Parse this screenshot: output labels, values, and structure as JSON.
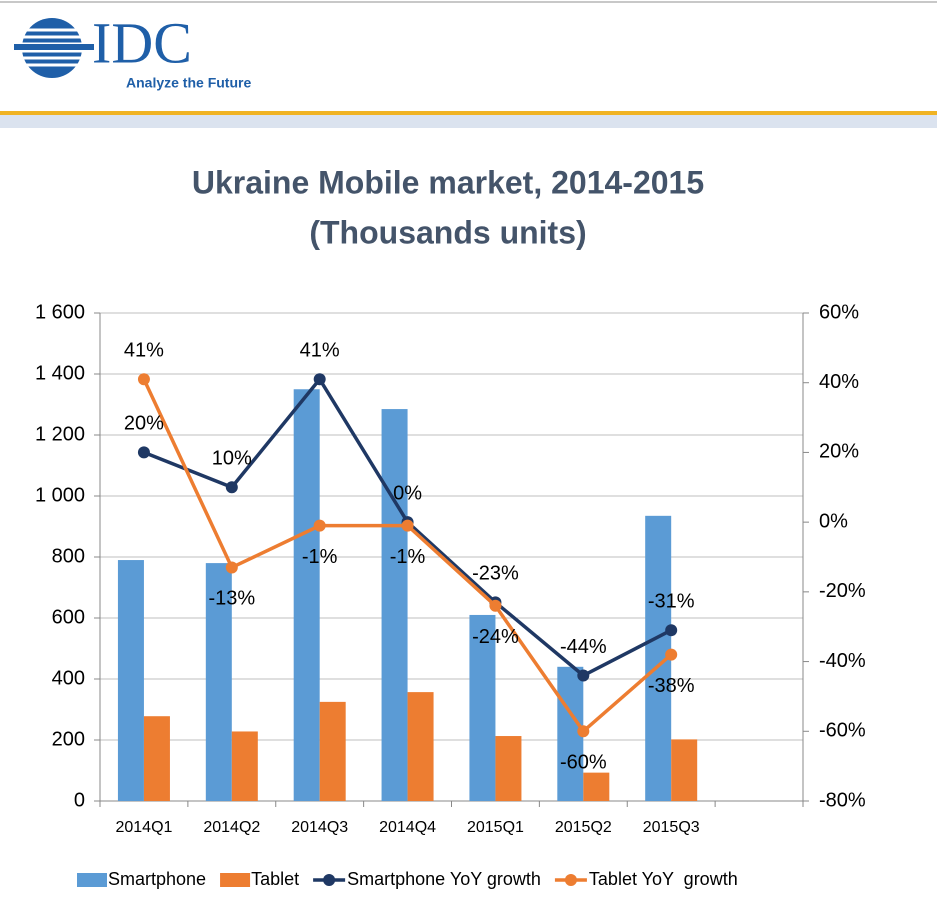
{
  "header": {
    "logo_text": "IDC",
    "tagline": "Analyze the Future"
  },
  "chart_data": {
    "type": "bar",
    "title": "Ukraine Mobile market, 2014-2015",
    "subtitle": "(Thousands units)",
    "categories": [
      "2014Q1",
      "2014Q2",
      "2014Q3",
      "2014Q4",
      "2015Q1",
      "2015Q2",
      "2015Q3",
      null
    ],
    "ylim": [
      0,
      1600
    ],
    "yticks": [
      0,
      200,
      400,
      600,
      800,
      {
        "value": 1000,
        "label": "1 000"
      },
      {
        "value": 1200,
        "label": "1 200"
      },
      {
        "value": 1400,
        "label": "1 400"
      },
      {
        "value": 1600,
        "label": "1 600"
      }
    ],
    "y2lim": [
      -80,
      60
    ],
    "y2ticks": [
      {
        "value": -80,
        "label": "-80%"
      },
      {
        "value": -60,
        "label": "-60%"
      },
      {
        "value": -40,
        "label": "-40%"
      },
      {
        "value": -20,
        "label": "-20%"
      },
      {
        "value": 0,
        "label": "0%"
      },
      {
        "value": 20,
        "label": "20%"
      },
      {
        "value": 40,
        "label": "40%"
      },
      {
        "value": 60,
        "label": "60%"
      }
    ],
    "grid": true,
    "legend": "bottom",
    "series": [
      {
        "name": "Smartphone",
        "type": "bar",
        "color": "#5b9bd5",
        "values": [
          790,
          780,
          1350,
          1285,
          610,
          440,
          935,
          null
        ]
      },
      {
        "name": "Tablet",
        "type": "bar",
        "color": "#ed7d31",
        "values": [
          278,
          228,
          325,
          357,
          213,
          93,
          202,
          null
        ]
      },
      {
        "name": "Smartphone YoY growth",
        "type": "line",
        "axis": "y2",
        "color": "#1f3864",
        "values": [
          20,
          10,
          41,
          0,
          -23,
          -44,
          -31,
          null
        ],
        "value_labels": [
          "20%",
          "10%",
          "41%",
          "0%",
          "-23%",
          "-44%",
          "-31%",
          null
        ]
      },
      {
        "name": "Tablet YoY  growth",
        "type": "line",
        "axis": "y2",
        "color": "#ed7d31",
        "values": [
          41,
          -13,
          -1,
          -1,
          -24,
          -60,
          -38,
          null
        ],
        "value_labels": [
          "41%",
          "-13%",
          "-1%",
          "-1%",
          "-24%",
          "-60%",
          "-38%",
          null
        ]
      }
    ]
  }
}
